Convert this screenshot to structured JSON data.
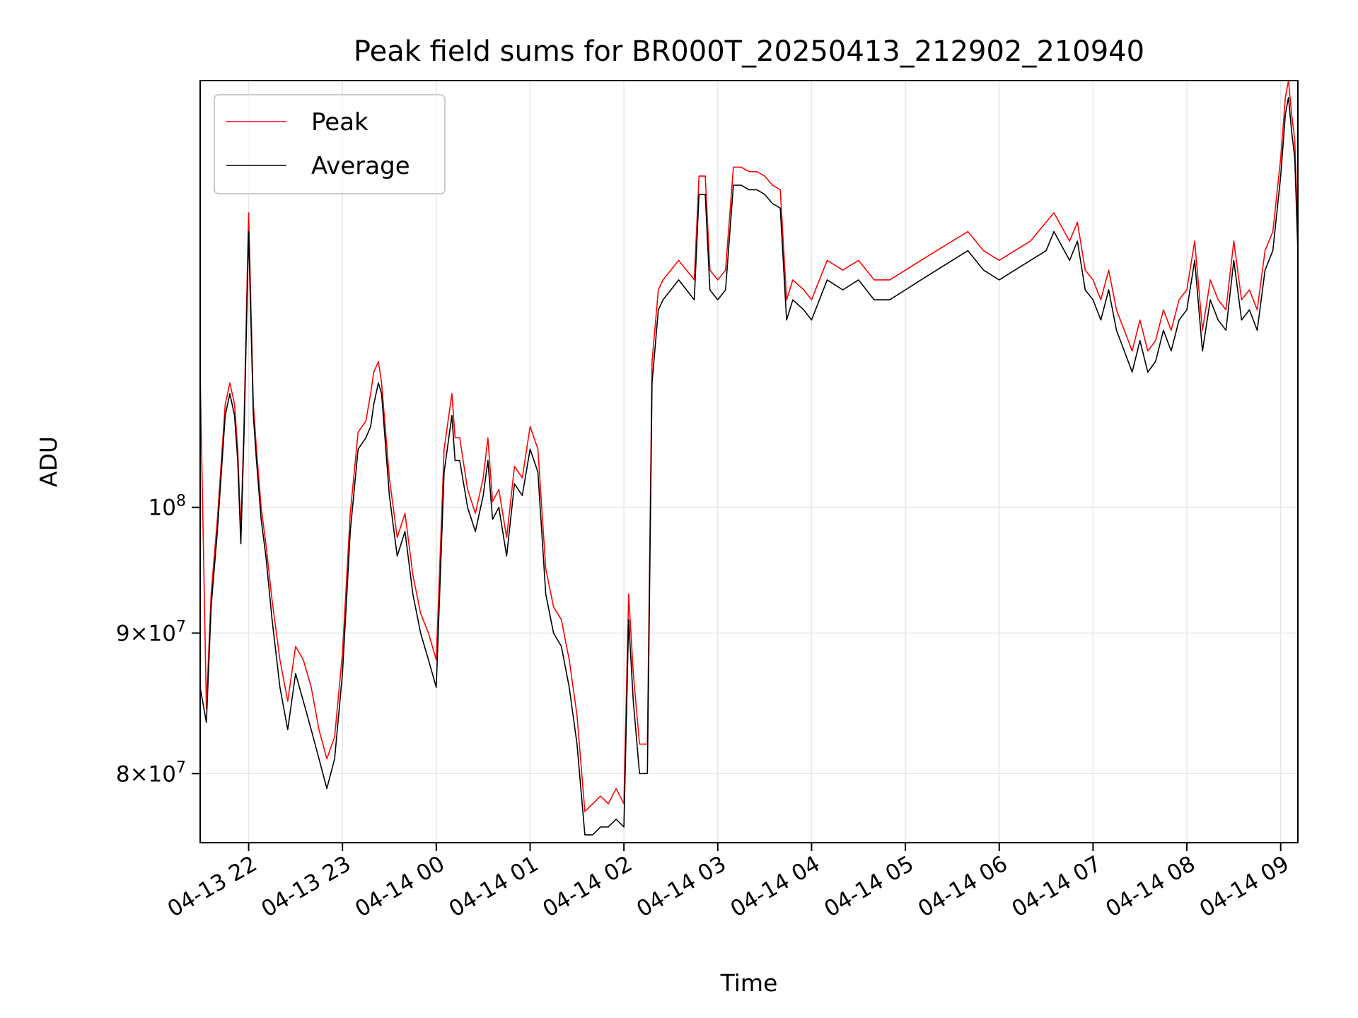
{
  "chart_data": {
    "type": "line",
    "title": "Peak field sums for BR000T_20250413_212902_210940",
    "xlabel": "Time",
    "ylabel": "ADU",
    "y_scale": "log",
    "ylim": [
      75500000,
      143000000
    ],
    "xlim": [
      "2025-04-13T21:29",
      "2025-04-14T09:11"
    ],
    "grid": true,
    "legend_position": "top-left",
    "x_ticks": [
      {
        "t": "2025-04-13T22:00",
        "label": "04-13 22"
      },
      {
        "t": "2025-04-13T23:00",
        "label": "04-13 23"
      },
      {
        "t": "2025-04-14T00:00",
        "label": "04-14 00"
      },
      {
        "t": "2025-04-14T01:00",
        "label": "04-14 01"
      },
      {
        "t": "2025-04-14T02:00",
        "label": "04-14 02"
      },
      {
        "t": "2025-04-14T03:00",
        "label": "04-14 03"
      },
      {
        "t": "2025-04-14T04:00",
        "label": "04-14 04"
      },
      {
        "t": "2025-04-14T05:00",
        "label": "04-14 05"
      },
      {
        "t": "2025-04-14T06:00",
        "label": "04-14 06"
      },
      {
        "t": "2025-04-14T07:00",
        "label": "04-14 07"
      },
      {
        "t": "2025-04-14T08:00",
        "label": "04-14 08"
      },
      {
        "t": "2025-04-14T09:00",
        "label": "04-14 09"
      }
    ],
    "y_ticks": [
      {
        "value": 80000000,
        "mant": "8",
        "exp": "7"
      },
      {
        "value": 90000000,
        "mant": "9",
        "exp": "7"
      },
      {
        "value": 100000000,
        "mant": "",
        "exp": "8"
      }
    ],
    "series": [
      {
        "name": "Average",
        "color": "#000000",
        "x": [
          "2025-04-13T21:29",
          "2025-04-13T21:33",
          "2025-04-13T21:36",
          "2025-04-13T21:40",
          "2025-04-13T21:45",
          "2025-04-13T21:48",
          "2025-04-13T21:51",
          "2025-04-13T21:53",
          "2025-04-13T21:55",
          "2025-04-13T21:57",
          "2025-04-13T22:00",
          "2025-04-13T22:03",
          "2025-04-13T22:05",
          "2025-04-13T22:08",
          "2025-04-13T22:11",
          "2025-04-13T22:15",
          "2025-04-13T22:20",
          "2025-04-13T22:25",
          "2025-04-13T22:30",
          "2025-04-13T22:35",
          "2025-04-13T22:40",
          "2025-04-13T22:45",
          "2025-04-13T22:50",
          "2025-04-13T22:55",
          "2025-04-13T23:00",
          "2025-04-13T23:05",
          "2025-04-13T23:10",
          "2025-04-13T23:15",
          "2025-04-13T23:18",
          "2025-04-13T23:20",
          "2025-04-13T23:23",
          "2025-04-13T23:25",
          "2025-04-13T23:30",
          "2025-04-13T23:35",
          "2025-04-13T23:40",
          "2025-04-13T23:45",
          "2025-04-13T23:50",
          "2025-04-13T23:55",
          "2025-04-14T00:00",
          "2025-04-14T00:05",
          "2025-04-14T00:10",
          "2025-04-14T00:12",
          "2025-04-14T00:15",
          "2025-04-14T00:20",
          "2025-04-14T00:25",
          "2025-04-14T00:30",
          "2025-04-14T00:33",
          "2025-04-14T00:36",
          "2025-04-14T00:40",
          "2025-04-14T00:45",
          "2025-04-14T00:50",
          "2025-04-14T00:55",
          "2025-04-14T01:00",
          "2025-04-14T01:05",
          "2025-04-14T01:10",
          "2025-04-14T01:15",
          "2025-04-14T01:20",
          "2025-04-14T01:25",
          "2025-04-14T01:30",
          "2025-04-14T01:35",
          "2025-04-14T01:40",
          "2025-04-14T01:45",
          "2025-04-14T01:50",
          "2025-04-14T01:55",
          "2025-04-14T02:00",
          "2025-04-14T02:03",
          "2025-04-14T02:06",
          "2025-04-14T02:10",
          "2025-04-14T02:15",
          "2025-04-14T02:18",
          "2025-04-14T02:22",
          "2025-04-14T02:25",
          "2025-04-14T02:30",
          "2025-04-14T02:35",
          "2025-04-14T02:40",
          "2025-04-14T02:45",
          "2025-04-14T02:48",
          "2025-04-14T02:52",
          "2025-04-14T02:55",
          "2025-04-14T03:00",
          "2025-04-14T03:05",
          "2025-04-14T03:10",
          "2025-04-14T03:15",
          "2025-04-14T03:20",
          "2025-04-14T03:25",
          "2025-04-14T03:30",
          "2025-04-14T03:35",
          "2025-04-14T03:40",
          "2025-04-14T03:44",
          "2025-04-14T03:48",
          "2025-04-14T03:55",
          "2025-04-14T04:00",
          "2025-04-14T04:10",
          "2025-04-14T04:20",
          "2025-04-14T04:30",
          "2025-04-14T04:40",
          "2025-04-14T04:50",
          "2025-04-14T05:00",
          "2025-04-14T05:10",
          "2025-04-14T05:20",
          "2025-04-14T05:30",
          "2025-04-14T05:40",
          "2025-04-14T05:50",
          "2025-04-14T06:00",
          "2025-04-14T06:10",
          "2025-04-14T06:20",
          "2025-04-14T06:30",
          "2025-04-14T06:35",
          "2025-04-14T06:45",
          "2025-04-14T06:50",
          "2025-04-14T06:55",
          "2025-04-14T07:00",
          "2025-04-14T07:05",
          "2025-04-14T07:10",
          "2025-04-14T07:15",
          "2025-04-14T07:20",
          "2025-04-14T07:25",
          "2025-04-14T07:30",
          "2025-04-14T07:35",
          "2025-04-14T07:40",
          "2025-04-14T07:45",
          "2025-04-14T07:50",
          "2025-04-14T07:55",
          "2025-04-14T08:00",
          "2025-04-14T08:05",
          "2025-04-14T08:10",
          "2025-04-14T08:15",
          "2025-04-14T08:20",
          "2025-04-14T08:25",
          "2025-04-14T08:30",
          "2025-04-14T08:35",
          "2025-04-14T08:40",
          "2025-04-14T08:45",
          "2025-04-14T08:50",
          "2025-04-14T08:55",
          "2025-04-14T09:00",
          "2025-04-14T09:03",
          "2025-04-14T09:05",
          "2025-04-14T09:07",
          "2025-04-14T09:09",
          "2025-04-14T09:11"
        ],
        "values": [
          86000000,
          83500000,
          92000000,
          98000000,
          108000000,
          110000000,
          108000000,
          104000000,
          97000000,
          106000000,
          126000000,
          108000000,
          104000000,
          99000000,
          96000000,
          91000000,
          86000000,
          83000000,
          87000000,
          85000000,
          83000000,
          81000000,
          79000000,
          81000000,
          87000000,
          98000000,
          105000000,
          106000000,
          107000000,
          109000000,
          111000000,
          110000000,
          101000000,
          96000000,
          98000000,
          93000000,
          90000000,
          88000000,
          86000000,
          103000000,
          108000000,
          104000000,
          104000000,
          100000000,
          98000000,
          101000000,
          104000000,
          99000000,
          100000000,
          96000000,
          102000000,
          101000000,
          105000000,
          103000000,
          93000000,
          90000000,
          89000000,
          86000000,
          82000000,
          76000000,
          76000000,
          76500000,
          76500000,
          77000000,
          76500000,
          91000000,
          85000000,
          80000000,
          80000000,
          111000000,
          118000000,
          119000000,
          120000000,
          121000000,
          120000000,
          119000000,
          130000000,
          130000000,
          120000000,
          119000000,
          120000000,
          131000000,
          131000000,
          130500000,
          130500000,
          130000000,
          129000000,
          128500000,
          117000000,
          119000000,
          118000000,
          117000000,
          121000000,
          120000000,
          121000000,
          119000000,
          119000000,
          120000000,
          121000000,
          122000000,
          123000000,
          124000000,
          122000000,
          121000000,
          122000000,
          123000000,
          124000000,
          126000000,
          123000000,
          125000000,
          120000000,
          119000000,
          117000000,
          120000000,
          116000000,
          114000000,
          112000000,
          115000000,
          112000000,
          113000000,
          116000000,
          114000000,
          117000000,
          118000000,
          123000000,
          114000000,
          119000000,
          117000000,
          116000000,
          123000000,
          117000000,
          118000000,
          116000000,
          122000000,
          124000000,
          132000000,
          139000000,
          141000000,
          137000000,
          134000000,
          124000000
        ]
      },
      {
        "name": "Peak",
        "color": "#ff0000",
        "x": [
          "2025-04-13T21:29",
          "2025-04-13T21:33",
          "2025-04-13T21:36",
          "2025-04-13T21:40",
          "2025-04-13T21:45",
          "2025-04-13T21:48",
          "2025-04-13T21:51",
          "2025-04-13T21:53",
          "2025-04-13T21:55",
          "2025-04-13T21:57",
          "2025-04-13T22:00",
          "2025-04-13T22:03",
          "2025-04-13T22:05",
          "2025-04-13T22:08",
          "2025-04-13T22:11",
          "2025-04-13T22:15",
          "2025-04-13T22:20",
          "2025-04-13T22:25",
          "2025-04-13T22:30",
          "2025-04-13T22:35",
          "2025-04-13T22:40",
          "2025-04-13T22:45",
          "2025-04-13T22:50",
          "2025-04-13T22:55",
          "2025-04-13T23:00",
          "2025-04-13T23:05",
          "2025-04-13T23:10",
          "2025-04-13T23:15",
          "2025-04-13T23:18",
          "2025-04-13T23:20",
          "2025-04-13T23:23",
          "2025-04-13T23:25",
          "2025-04-13T23:30",
          "2025-04-13T23:35",
          "2025-04-13T23:40",
          "2025-04-13T23:45",
          "2025-04-13T23:50",
          "2025-04-13T23:55",
          "2025-04-14T00:00",
          "2025-04-14T00:05",
          "2025-04-14T00:10",
          "2025-04-14T00:12",
          "2025-04-14T00:15",
          "2025-04-14T00:20",
          "2025-04-14T00:25",
          "2025-04-14T00:30",
          "2025-04-14T00:33",
          "2025-04-14T00:36",
          "2025-04-14T00:40",
          "2025-04-14T00:45",
          "2025-04-14T00:50",
          "2025-04-14T00:55",
          "2025-04-14T01:00",
          "2025-04-14T01:05",
          "2025-04-14T01:10",
          "2025-04-14T01:15",
          "2025-04-14T01:20",
          "2025-04-14T01:25",
          "2025-04-14T01:30",
          "2025-04-14T01:35",
          "2025-04-14T01:40",
          "2025-04-14T01:45",
          "2025-04-14T01:50",
          "2025-04-14T01:55",
          "2025-04-14T02:00",
          "2025-04-14T02:03",
          "2025-04-14T02:06",
          "2025-04-14T02:10",
          "2025-04-14T02:15",
          "2025-04-14T02:18",
          "2025-04-14T02:22",
          "2025-04-14T02:25",
          "2025-04-14T02:30",
          "2025-04-14T02:35",
          "2025-04-14T02:40",
          "2025-04-14T02:45",
          "2025-04-14T02:48",
          "2025-04-14T02:52",
          "2025-04-14T02:55",
          "2025-04-14T03:00",
          "2025-04-14T03:05",
          "2025-04-14T03:10",
          "2025-04-14T03:15",
          "2025-04-14T03:20",
          "2025-04-14T03:25",
          "2025-04-14T03:30",
          "2025-04-14T03:35",
          "2025-04-14T03:40",
          "2025-04-14T03:44",
          "2025-04-14T03:48",
          "2025-04-14T03:55",
          "2025-04-14T04:00",
          "2025-04-14T04:10",
          "2025-04-14T04:20",
          "2025-04-14T04:30",
          "2025-04-14T04:40",
          "2025-04-14T04:50",
          "2025-04-14T05:00",
          "2025-04-14T05:10",
          "2025-04-14T05:20",
          "2025-04-14T05:30",
          "2025-04-14T05:40",
          "2025-04-14T05:50",
          "2025-04-14T06:00",
          "2025-04-14T06:10",
          "2025-04-14T06:20",
          "2025-04-14T06:30",
          "2025-04-14T06:35",
          "2025-04-14T06:45",
          "2025-04-14T06:50",
          "2025-04-14T06:55",
          "2025-04-14T07:00",
          "2025-04-14T07:05",
          "2025-04-14T07:10",
          "2025-04-14T07:15",
          "2025-04-14T07:20",
          "2025-04-14T07:25",
          "2025-04-14T07:30",
          "2025-04-14T07:35",
          "2025-04-14T07:40",
          "2025-04-14T07:45",
          "2025-04-14T07:50",
          "2025-04-14T07:55",
          "2025-04-14T08:00",
          "2025-04-14T08:05",
          "2025-04-14T08:10",
          "2025-04-14T08:15",
          "2025-04-14T08:20",
          "2025-04-14T08:25",
          "2025-04-14T08:30",
          "2025-04-14T08:35",
          "2025-04-14T08:40",
          "2025-04-14T08:45",
          "2025-04-14T08:50",
          "2025-04-14T08:55",
          "2025-04-14T09:00",
          "2025-04-14T09:03",
          "2025-04-14T09:05",
          "2025-04-14T09:07",
          "2025-04-14T09:09",
          "2025-04-14T09:11"
        ],
        "values": [
          112000000,
          84500000,
          93000000,
          99000000,
          109000000,
          111000000,
          109000000,
          105000000,
          98000000,
          107000000,
          128000000,
          109000000,
          105000000,
          100000000,
          97000000,
          92500000,
          88000000,
          85000000,
          89000000,
          88000000,
          86000000,
          83000000,
          81000000,
          82500000,
          88500000,
          99500000,
          106500000,
          107500000,
          110000000,
          112000000,
          113000000,
          111000000,
          102500000,
          97500000,
          99500000,
          94500000,
          91500000,
          90000000,
          88000000,
          105000000,
          110000000,
          106000000,
          106000000,
          101500000,
          99500000,
          102500000,
          106000000,
          100500000,
          101500000,
          97500000,
          103500000,
          102500000,
          107000000,
          105000000,
          95000000,
          92000000,
          91000000,
          88000000,
          84000000,
          77500000,
          78000000,
          78500000,
          78000000,
          79000000,
          78000000,
          93000000,
          87000000,
          82000000,
          82000000,
          113000000,
          120000000,
          121000000,
          122000000,
          123000000,
          122000000,
          121000000,
          132000000,
          132000000,
          122000000,
          121000000,
          122000000,
          133000000,
          133000000,
          132500000,
          132500000,
          132000000,
          131000000,
          130500000,
          119000000,
          121000000,
          120000000,
          119000000,
          123000000,
          122000000,
          123000000,
          121000000,
          121000000,
          122000000,
          123000000,
          124000000,
          125000000,
          126000000,
          124000000,
          123000000,
          124000000,
          125000000,
          127000000,
          128000000,
          125000000,
          127000000,
          122000000,
          121000000,
          119000000,
          122000000,
          118000000,
          116000000,
          114000000,
          117000000,
          114000000,
          115000000,
          118000000,
          116000000,
          119000000,
          120000000,
          125000000,
          116000000,
          121000000,
          119000000,
          118000000,
          125000000,
          119000000,
          120000000,
          118000000,
          124000000,
          126000000,
          134000000,
          141000000,
          143000000,
          139000000,
          136000000,
          126000000
        ]
      }
    ]
  }
}
